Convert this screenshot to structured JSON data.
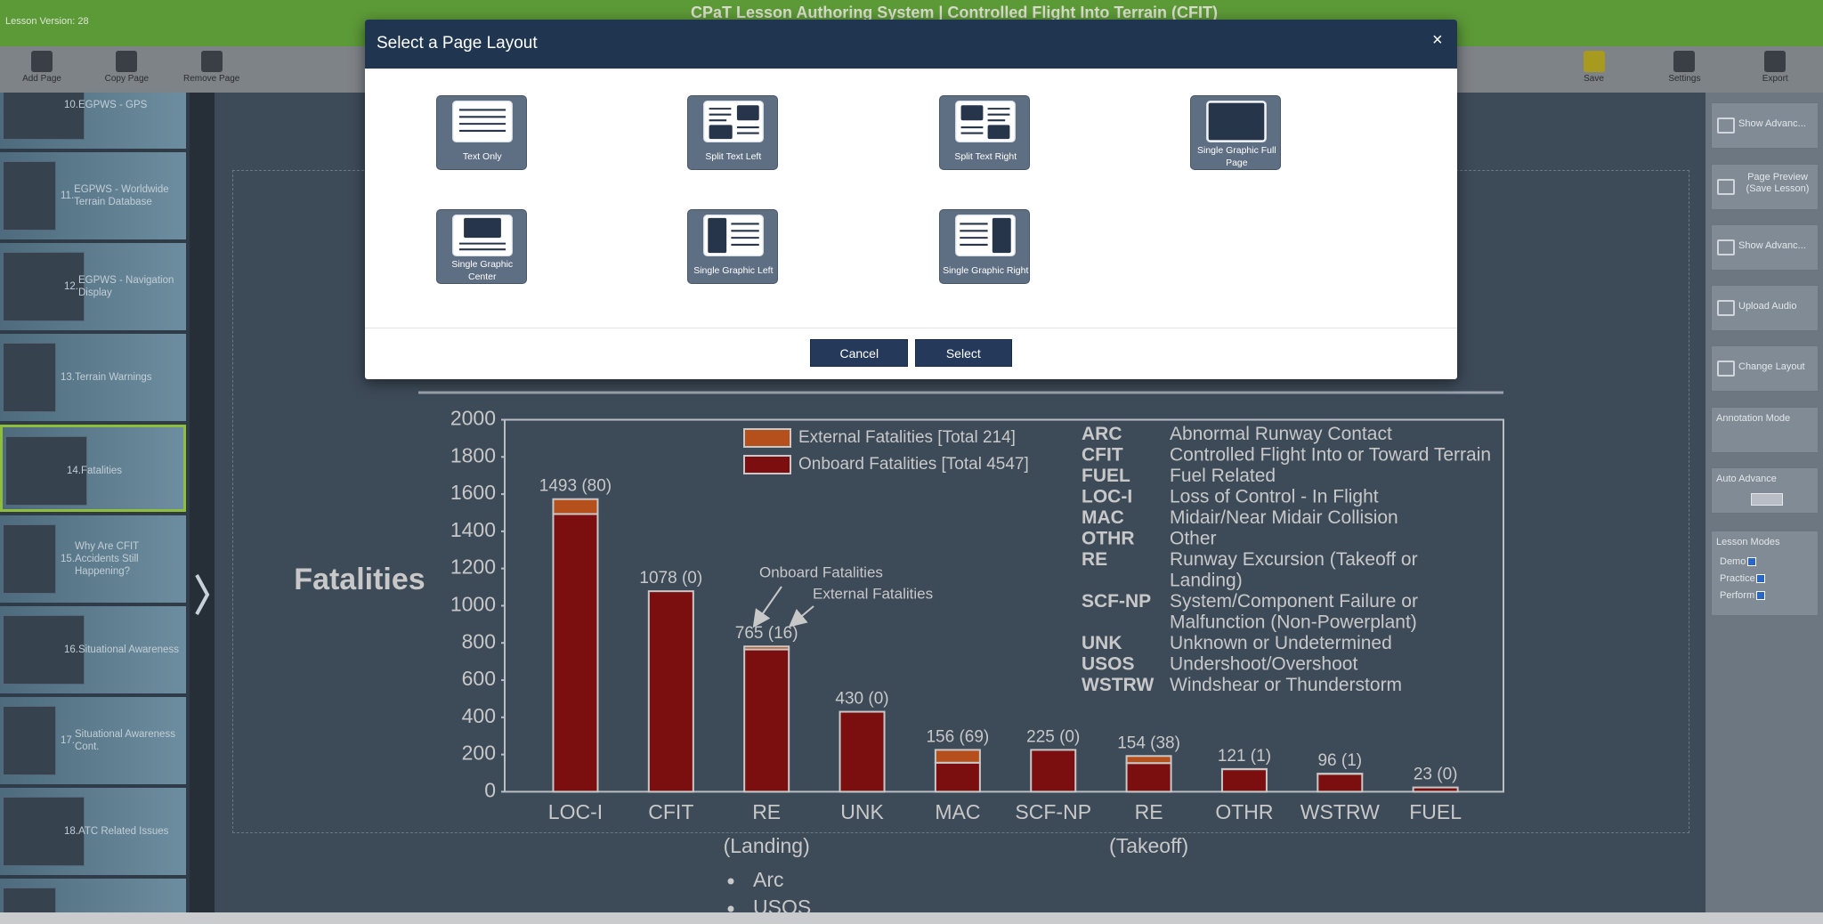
{
  "app": {
    "title": "CPaT Lesson Authoring System | Controlled Flight Into Terrain (CFIT)",
    "lesson_version": "Lesson Version: 28"
  },
  "toolbar": {
    "left": [
      "Add Page",
      "Copy Page",
      "Remove Page"
    ],
    "right": [
      "Save",
      "Settings",
      "Export"
    ]
  },
  "slides": [
    {
      "number": "10.",
      "title": "EGPWS - GPS"
    },
    {
      "number": "11.",
      "title": "EGPWS - Worldwide Terrain Database"
    },
    {
      "number": "12.",
      "title": "EGPWS - Navigation Display"
    },
    {
      "number": "13.",
      "title": "Terrain Warnings"
    },
    {
      "number": "14.",
      "title": "Fatalities"
    },
    {
      "number": "15.",
      "title": "Why Are CFIT Accidents Still Happening?"
    },
    {
      "number": "16.",
      "title": "Situational Awareness"
    },
    {
      "number": "17.",
      "title": "Situational Awareness Cont."
    },
    {
      "number": "18.",
      "title": "ATC Related Issues"
    }
  ],
  "right_panel": {
    "buttons": [
      "Show Advanc...",
      "Page Preview (Save Lesson)",
      "Show Advanc...",
      "Upload Audio",
      "Change Layout"
    ],
    "annotation_mode": "Annotation Mode",
    "auto_advance": "Auto Advance",
    "lesson_modes": {
      "title": "Lesson Modes",
      "options": [
        "Demo",
        "Practice",
        "Perform"
      ]
    }
  },
  "modal": {
    "title": "Select a Page Layout",
    "close": "×",
    "layouts": [
      "Text Only",
      "Split Text Left",
      "Split Text Right",
      "Single Graphic Full Page",
      "Single Graphic Center",
      "Single Graphic Left",
      "Single Graphic Right"
    ],
    "buttons": [
      "Cancel",
      "Select"
    ]
  },
  "slide": {
    "title": "Fatalities",
    "bullets": [
      "Arc",
      "USOS"
    ]
  },
  "chart_data": {
    "type": "bar",
    "stacked": true,
    "categories": [
      "LOC-I",
      "CFIT",
      "RE",
      "UNK",
      "MAC",
      "SCF-NP",
      "RE",
      "OTHR",
      "WSTRW",
      "FUEL"
    ],
    "category_sublabels": [
      null,
      null,
      "(Landing)",
      null,
      null,
      null,
      "(Takeoff)",
      null,
      null,
      null
    ],
    "series": [
      {
        "name": "Onboard Fatalities [Total 4547]",
        "color": "#7b0f0f",
        "values": [
          1493,
          1078,
          765,
          430,
          156,
          225,
          154,
          121,
          96,
          23
        ]
      },
      {
        "name": "External Fatalities [Total 214]",
        "color": "#b5501c",
        "values": [
          80,
          0,
          16,
          0,
          69,
          0,
          38,
          1,
          1,
          0
        ]
      }
    ],
    "value_labels": [
      "1493 (80)",
      "1078 (0)",
      "765 (16)",
      "430 (0)",
      "156 (69)",
      "225 (0)",
      "154 (38)",
      "121 (1)",
      "96 (1)",
      "23 (0)"
    ],
    "ylim": [
      0,
      2000
    ],
    "yticks": [
      0,
      200,
      400,
      600,
      800,
      1000,
      1200,
      1400,
      1600,
      1800,
      2000
    ],
    "annotations": [
      "Onboard Fatalities",
      "External Fatalities"
    ],
    "abbreviations": [
      {
        "abbr": "ARC",
        "desc": [
          "Abnormal Runway Contact"
        ]
      },
      {
        "abbr": "CFIT",
        "desc": [
          "Controlled Flight Into or Toward Terrain"
        ]
      },
      {
        "abbr": "FUEL",
        "desc": [
          "Fuel Related"
        ]
      },
      {
        "abbr": "LOC-I",
        "desc": [
          "Loss of Control - In Flight"
        ]
      },
      {
        "abbr": "MAC",
        "desc": [
          "Midair/Near Midair Collision"
        ]
      },
      {
        "abbr": "OTHR",
        "desc": [
          "Other"
        ]
      },
      {
        "abbr": "RE",
        "desc": [
          "Runway Excursion (Takeoff or",
          "Landing)"
        ]
      },
      {
        "abbr": "SCF-NP",
        "desc": [
          "System/Component Failure or",
          "Malfunction (Non-Powerplant)"
        ]
      },
      {
        "abbr": "UNK",
        "desc": [
          "Unknown or Undetermined"
        ]
      },
      {
        "abbr": "USOS",
        "desc": [
          "Undershoot/Overshoot"
        ]
      },
      {
        "abbr": "WSTRW",
        "desc": [
          "Windshear or Thunderstorm"
        ]
      }
    ]
  }
}
